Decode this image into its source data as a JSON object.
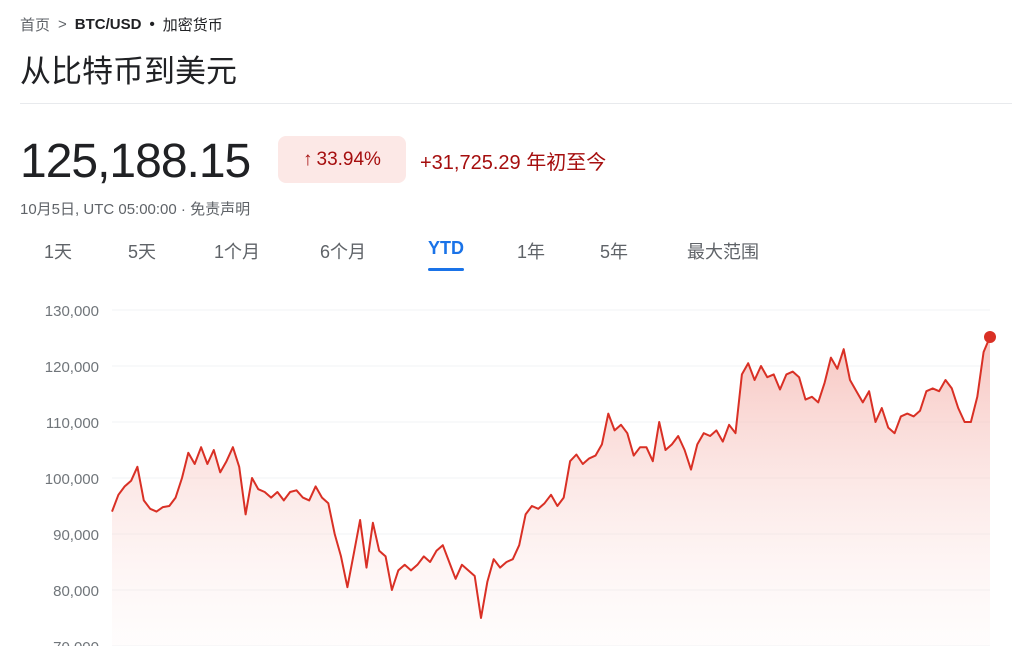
{
  "breadcrumb": {
    "home": "首页",
    "separator": ">",
    "symbol": "BTC/USD",
    "dot": "•",
    "category": "加密货币"
  },
  "title": "从比特币到美元",
  "quote": {
    "price": "125,188.15",
    "percent": "33.94%",
    "change": "+31,725.29",
    "period": "年初至今",
    "timestamp": "10月5日, UTC 05:00:00 · 免责声明"
  },
  "tabs": [
    "1天",
    "5天",
    "1个月",
    "6个月",
    "YTD",
    "1年",
    "5年",
    "最大范围"
  ],
  "active_tab": "YTD",
  "colors": {
    "line": "#d93025",
    "fill": "#fce8e6",
    "accent": "#1a73e8",
    "badge_text": "#a50e0e"
  },
  "chart_data": {
    "type": "area",
    "ylabel": "",
    "xlabel": "",
    "yticks": [
      "130,000",
      "120,000",
      "110,000",
      "100,000",
      "90,000",
      "80,000",
      "70,000"
    ],
    "ylim": [
      70000,
      130000
    ],
    "grid": true,
    "x_range": [
      "Jan 1",
      "Oct 5"
    ],
    "values": [
      94000,
      97000,
      98500,
      99500,
      102000,
      96000,
      94500,
      94000,
      94800,
      95000,
      96500,
      100000,
      104500,
      102500,
      105500,
      102500,
      105000,
      101000,
      103000,
      105500,
      102000,
      93500,
      100000,
      98000,
      97500,
      96500,
      97500,
      96000,
      97500,
      97800,
      96500,
      96000,
      98500,
      96500,
      95500,
      90000,
      86000,
      80500,
      86500,
      92500,
      84000,
      92000,
      87000,
      86000,
      80000,
      83500,
      84500,
      83500,
      84500,
      86000,
      85000,
      87000,
      88000,
      85000,
      82000,
      84500,
      83500,
      82500,
      75000,
      81500,
      85500,
      84000,
      85000,
      85500,
      88000,
      93500,
      95000,
      94500,
      95500,
      97000,
      95000,
      96500,
      103000,
      104200,
      102500,
      103500,
      104000,
      106000,
      111500,
      108500,
      109500,
      108000,
      104000,
      105500,
      105500,
      103000,
      110000,
      105000,
      106000,
      107500,
      105000,
      101500,
      106000,
      108000,
      107500,
      108500,
      106500,
      109500,
      108000,
      118500,
      120500,
      117500,
      120000,
      118000,
      118500,
      115800,
      118500,
      119000,
      118000,
      114000,
      114500,
      113500,
      117000,
      121500,
      119500,
      123000,
      117500,
      115500,
      113500,
      115500,
      110000,
      112500,
      109000,
      108000,
      111000,
      111500,
      111000,
      112000,
      115500,
      116000,
      115500,
      117500,
      116000,
      112500,
      110000,
      110000,
      114500,
      122500,
      125188
    ]
  }
}
